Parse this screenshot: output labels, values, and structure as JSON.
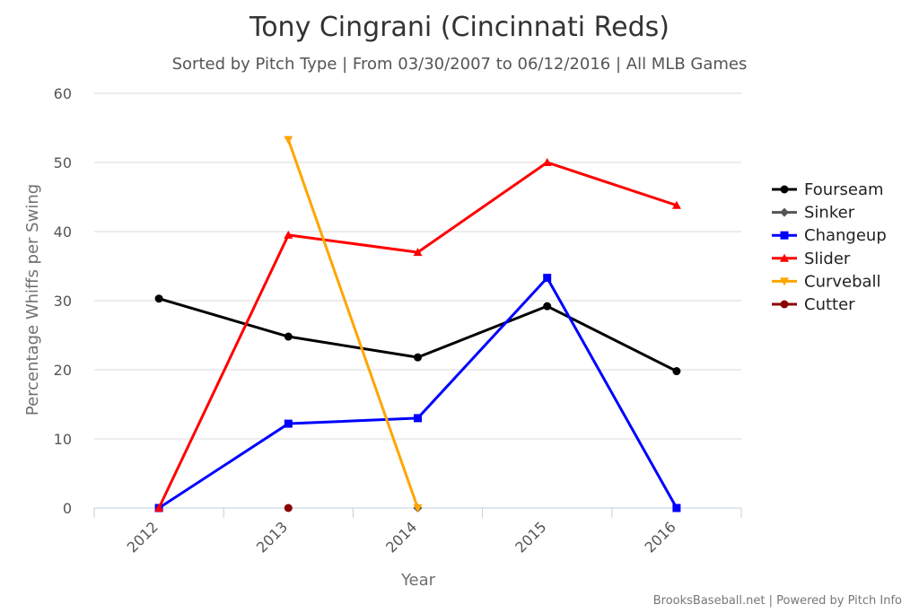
{
  "chart_data": {
    "type": "line",
    "title": "Tony Cingrani (Cincinnati Reds)",
    "subtitle": "Sorted by Pitch Type | From 03/30/2007 to 06/12/2016 | All MLB Games",
    "xlabel": "Year",
    "ylabel": "Percentage Whiffs per Swing",
    "categories": [
      "2012",
      "2013",
      "2014",
      "2015",
      "2016"
    ],
    "y_ticks": [
      "0",
      "10",
      "20",
      "30",
      "40",
      "50",
      "60"
    ],
    "ylim": [
      0,
      60
    ],
    "grid": true,
    "legend_position": "right",
    "series": [
      {
        "name": "Fourseam",
        "color": "#000000",
        "marker": "circle",
        "values": [
          30.3,
          24.8,
          21.8,
          29.2,
          19.8
        ]
      },
      {
        "name": "Sinker",
        "color": "#555555",
        "marker": "diamond",
        "values": [
          null,
          null,
          0,
          null,
          null
        ]
      },
      {
        "name": "Changeup",
        "color": "#0000ff",
        "marker": "square",
        "values": [
          0,
          12.2,
          13.0,
          33.3,
          0
        ]
      },
      {
        "name": "Slider",
        "color": "#ff0000",
        "marker": "triangle",
        "values": [
          0,
          39.5,
          37.0,
          50.0,
          43.8
        ]
      },
      {
        "name": "Curveball",
        "color": "#ffa500",
        "marker": "triangle-down",
        "values": [
          null,
          53.3,
          0,
          null,
          null
        ]
      },
      {
        "name": "Cutter",
        "color": "#8b0000",
        "marker": "circle",
        "values": [
          null,
          0,
          null,
          null,
          null
        ]
      }
    ]
  },
  "credits": "BrooksBaseball.net | Powered by Pitch Info"
}
